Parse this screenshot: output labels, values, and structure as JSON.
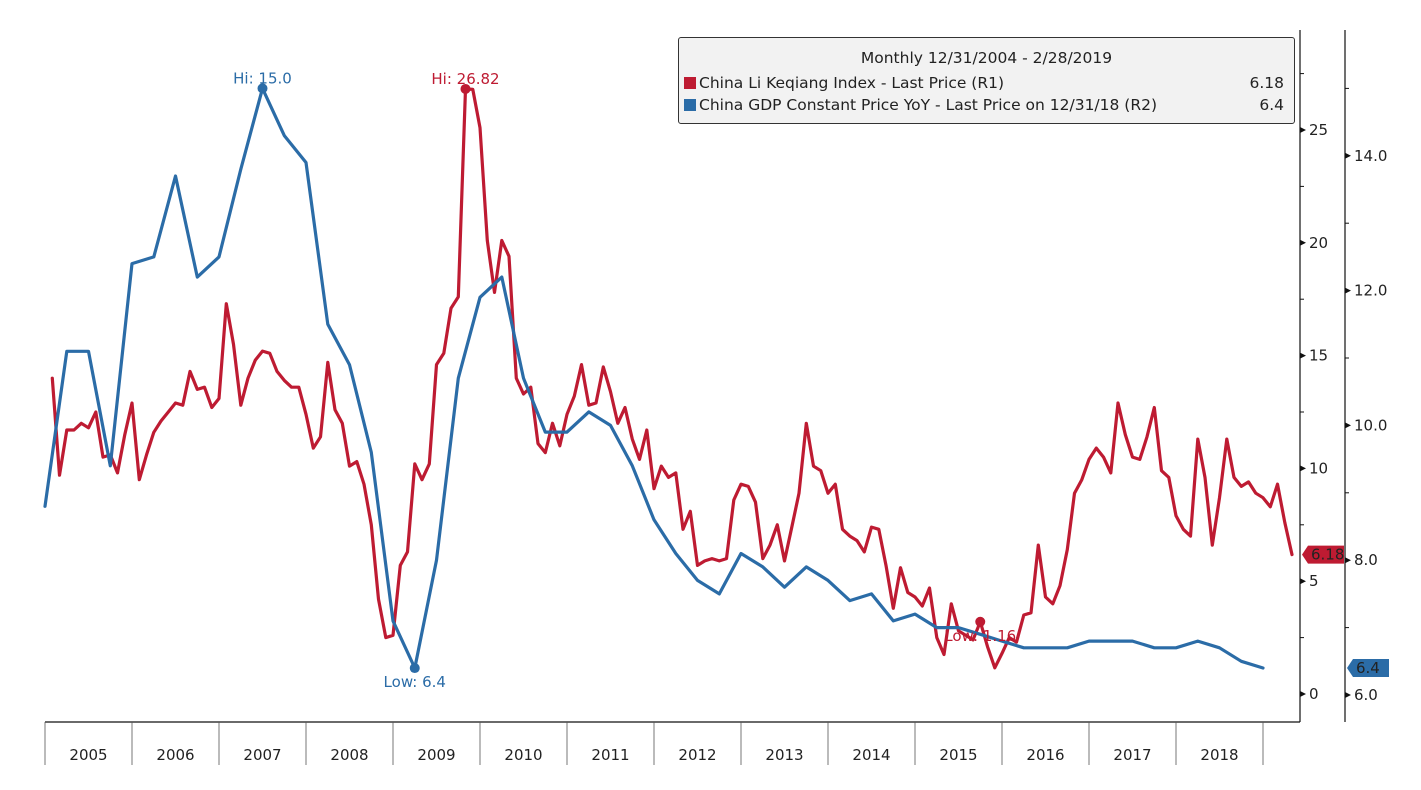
{
  "chart_data": {
    "type": "line",
    "title": "Monthly 12/31/2004 - 2/28/2019",
    "xlabel": "",
    "ylabel_right1": "R1",
    "ylabel_right2": "R2",
    "x_categories": [
      "2005",
      "2006",
      "2007",
      "2008",
      "2009",
      "2010",
      "2011",
      "2012",
      "2013",
      "2014",
      "2015",
      "2016",
      "2017",
      "2018"
    ],
    "axes": {
      "r1": {
        "ylim": [
          -1.2,
          30.8
        ],
        "ticks": [
          0,
          5,
          10,
          15,
          20,
          25
        ],
        "tick_labels": [
          "0",
          "5",
          "10",
          "15",
          "20",
          "25"
        ]
      },
      "r2": {
        "ylim": [
          5.6,
          15.2
        ],
        "ticks": [
          6.0,
          8.0,
          10.0,
          12.0,
          14.0
        ],
        "tick_labels": [
          "6.0",
          "8.0",
          "10.0",
          "12.0",
          "14.0"
        ]
      }
    },
    "legend_position": "top-right",
    "series": [
      {
        "name": "China Li Keqiang Index - Last Price (R1)",
        "axis": "r1",
        "color": "#be1b32",
        "last_value": "6.18",
        "frequency": "monthly",
        "start": "2005-01",
        "values": [
          14.0,
          9.7,
          11.7,
          11.7,
          12.0,
          11.8,
          12.5,
          10.5,
          10.6,
          9.8,
          11.5,
          12.9,
          9.5,
          10.6,
          11.6,
          12.1,
          12.5,
          12.9,
          12.8,
          14.3,
          13.5,
          13.6,
          12.7,
          13.1,
          17.3,
          15.5,
          12.8,
          14.0,
          14.8,
          15.2,
          15.1,
          14.3,
          13.9,
          13.6,
          13.6,
          12.4,
          10.9,
          11.4,
          14.7,
          12.6,
          12.0,
          10.1,
          10.3,
          9.3,
          7.5,
          4.2,
          2.5,
          2.6,
          5.7,
          6.3,
          10.2,
          9.5,
          10.2,
          14.6,
          15.1,
          17.1,
          17.6,
          26.82,
          26.8,
          25.1,
          20.1,
          17.8,
          20.1,
          19.4,
          14.0,
          13.3,
          13.6,
          11.1,
          10.7,
          12.0,
          11.0,
          12.4,
          13.2,
          14.6,
          12.8,
          12.9,
          14.5,
          13.4,
          12.0,
          12.7,
          11.3,
          10.4,
          11.7,
          9.1,
          10.1,
          9.6,
          9.8,
          7.3,
          8.1,
          5.7,
          5.9,
          6.0,
          5.9,
          6.0,
          8.6,
          9.3,
          9.2,
          8.5,
          6.0,
          6.6,
          7.5,
          5.9,
          7.4,
          8.9,
          12.0,
          10.1,
          9.9,
          8.9,
          9.3,
          7.3,
          7.0,
          6.8,
          6.3,
          7.4,
          7.3,
          5.7,
          3.8,
          5.6,
          4.5,
          4.3,
          3.9,
          4.7,
          2.5,
          1.75,
          4.0,
          2.8,
          2.6,
          2.4,
          3.2,
          2.1,
          1.16,
          1.8,
          2.5,
          2.3,
          3.5,
          3.6,
          6.6,
          4.3,
          4.0,
          4.8,
          6.4,
          8.9,
          9.5,
          10.4,
          10.9,
          10.5,
          9.8,
          12.9,
          11.5,
          10.5,
          10.4,
          11.4,
          12.7,
          9.9,
          9.6,
          7.9,
          7.3,
          7.0,
          11.3,
          9.6,
          6.6,
          8.7,
          11.3,
          9.6,
          9.2,
          9.4,
          8.9,
          8.7,
          8.3,
          9.3,
          7.6,
          6.18
        ]
      },
      {
        "name": "China GDP Constant Price YoY - Last Price on 12/31/18 (R2)",
        "axis": "r2",
        "color": "#2b6ca7",
        "last_value": "6.4",
        "frequency": "quarterly",
        "start": "2004-12",
        "values": [
          8.8,
          11.1,
          11.1,
          9.4,
          12.4,
          12.5,
          13.7,
          12.2,
          12.5,
          13.8,
          15.0,
          14.3,
          13.9,
          11.5,
          10.9,
          9.6,
          7.1,
          6.4,
          8.0,
          10.7,
          11.9,
          12.2,
          10.7,
          9.9,
          9.9,
          10.2,
          10.0,
          9.4,
          8.6,
          8.1,
          7.7,
          7.5,
          8.1,
          7.9,
          7.6,
          7.9,
          7.7,
          7.4,
          7.5,
          7.1,
          7.2,
          7.0,
          7.0,
          6.9,
          6.8,
          6.7,
          6.7,
          6.7,
          6.8,
          6.8,
          6.8,
          6.7,
          6.7,
          6.8,
          6.7,
          6.5,
          6.4
        ]
      }
    ],
    "annotations": [
      {
        "text": "Hi: 15.0",
        "series": 1,
        "point_index": 10,
        "position": "above",
        "color": "#2b6ca7"
      },
      {
        "text": "Hi: 26.82",
        "series": 0,
        "point_index": 57,
        "position": "above",
        "color": "#be1b32"
      },
      {
        "text": "Low: 6.4",
        "series": 1,
        "point_index": 17,
        "position": "below",
        "color": "#2b6ca7"
      },
      {
        "text": "Low: 1.16",
        "series": 0,
        "point_index": 128,
        "position": "below",
        "color": "#be1b32"
      }
    ]
  },
  "legend": {
    "title": "Monthly 12/31/2004 - 2/28/2019",
    "items": [
      {
        "label": "China Li Keqiang Index - Last Price (R1)",
        "value": "6.18",
        "color": "#be1b32"
      },
      {
        "label": "China GDP Constant Price YoY - Last Price on 12/31/18 (R2)",
        "value": "6.4",
        "color": "#2b6ca7"
      }
    ]
  },
  "last_price_tags": {
    "r1": "6.18",
    "r2": "6.4"
  }
}
